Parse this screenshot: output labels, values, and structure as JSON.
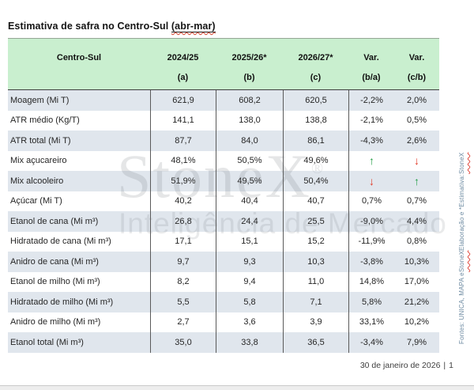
{
  "title": {
    "prefix": "Estimativa de safra no Centro-Sul ",
    "range": "(abr-mar)"
  },
  "table": {
    "header": {
      "label_col": "Centro-Sul",
      "years": [
        "2024/25",
        "2025/26*",
        "2026/27*",
        "Var.",
        "Var."
      ],
      "letters": [
        "(a)",
        "(b)",
        "(c)",
        "(b/a)",
        "(c/b)"
      ]
    },
    "rows": [
      {
        "label": "Moagem (Mi T)",
        "a": "621,9",
        "b": "608,2",
        "c": "620,5",
        "ba": "-2,2%",
        "cb": "2,0%"
      },
      {
        "label": "ATR médio (Kg/T)",
        "a": "141,1",
        "b": "138,0",
        "c": "138,8",
        "ba": "-2,1%",
        "cb": "0,5%"
      },
      {
        "label": "ATR total (Mi T)",
        "a": "87,7",
        "b": "84,0",
        "c": "86,1",
        "ba": "-4,3%",
        "cb": "2,6%"
      },
      {
        "label": "Mix açucareiro",
        "a": "48,1%",
        "b": "50,5%",
        "c": "49,6%",
        "ba": "↑",
        "cb": "↓"
      },
      {
        "label": "Mix alcooleiro",
        "a": "51,9%",
        "b": "49,5%",
        "c": "50,4%",
        "ba": "↓",
        "cb": "↑"
      },
      {
        "label": "Açúcar (Mi T)",
        "a": "40,2",
        "b": "40,4",
        "c": "40,7",
        "ba": "0,7%",
        "cb": "0,7%"
      },
      {
        "label": "Etanol de cana (Mi m³)",
        "a": "26,8",
        "b": "24,4",
        "c": "25,5",
        "ba": "-9,0%",
        "cb": "4,4%"
      },
      {
        "label": "Hidratado de cana (Mi m³)",
        "a": "17,1",
        "b": "15,1",
        "c": "15,2",
        "ba": "-11,9%",
        "cb": "0,8%"
      },
      {
        "label": "Anidro de cana (Mi m³)",
        "a": "9,7",
        "b": "9,3",
        "c": "10,3",
        "ba": "-3,8%",
        "cb": "10,3%"
      },
      {
        "label": "Etanol de milho (Mi m³)",
        "a": "8,2",
        "b": "9,4",
        "c": "11,0",
        "ba": "14,8%",
        "cb": "17,0%"
      },
      {
        "label": "Hidratado de milho (Mi m³)",
        "a": "5,5",
        "b": "5,8",
        "c": "7,1",
        "ba": "5,8%",
        "cb": "21,2%"
      },
      {
        "label": "Anidro de milho (Mi m³)",
        "a": "2,7",
        "b": "3,6",
        "c": "3,9",
        "ba": "33,1%",
        "cb": "10,2%"
      },
      {
        "label": "Etanol total (Mi m³)",
        "a": "35,0",
        "b": "33,8",
        "c": "36,5",
        "ba": "-3,4%",
        "cb": "7,9%"
      }
    ]
  },
  "watermark": {
    "brand": "StoneX",
    "registered": "®",
    "tagline": "Inteligência de Mercado"
  },
  "sidebar": {
    "part1": "Fontes: UNICA, MAPA e ",
    "brand1": "StoneX",
    "part2": "  Elaboração e *Estimativa: ",
    "brand2": "StoneX"
  },
  "footer": {
    "date": "30 de janeiro de 2026",
    "separator": "|",
    "page": "1"
  },
  "colors": {
    "header_bg": "#c9efcf",
    "row_alt_bg": "#e0e6ed",
    "arrow_up": "#229e45",
    "arrow_down": "#e23b28"
  }
}
